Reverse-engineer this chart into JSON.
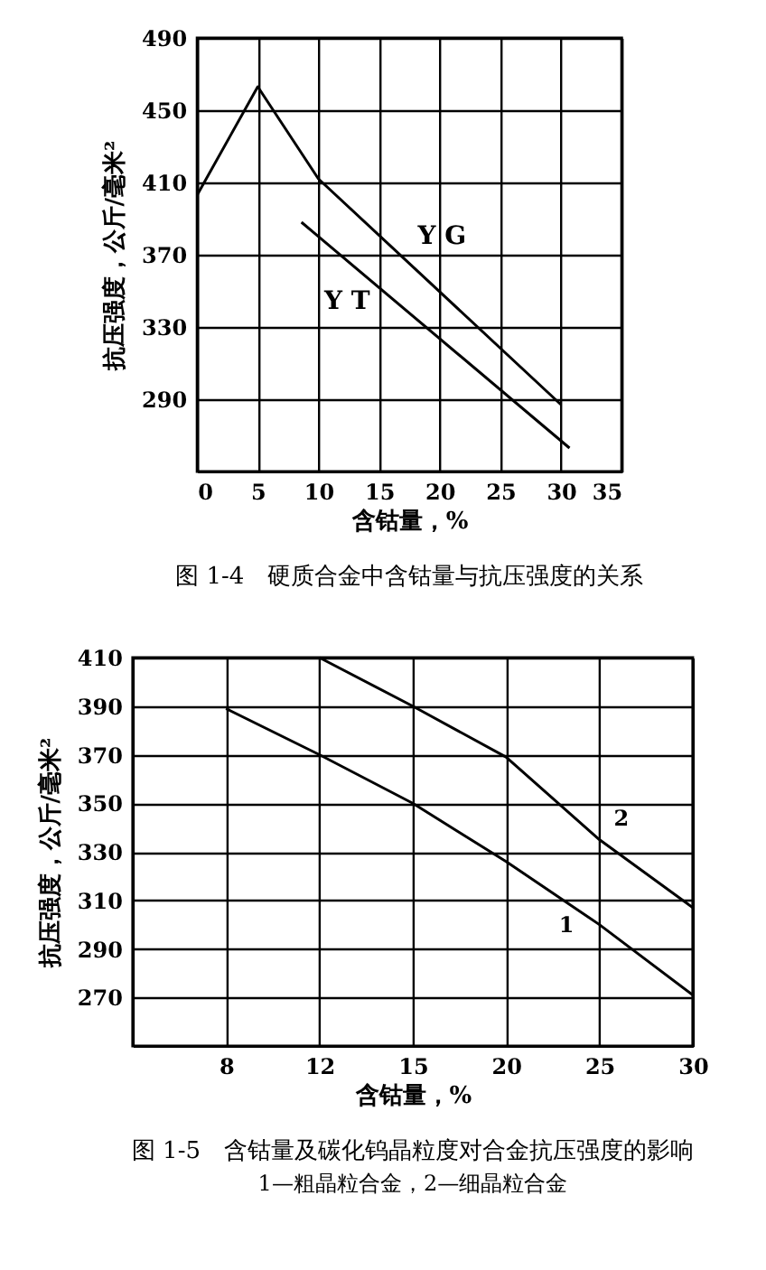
{
  "chart_data": [
    {
      "type": "line",
      "title": "图 1-4　硬质合金中含钴量与抗压强度的关系",
      "xlabel": "含钴量，%",
      "ylabel": "抗压强度，公斤/毫米²",
      "series": [
        {
          "name": "Y G",
          "color": "#000000",
          "x": [
            0,
            5,
            10,
            30
          ],
          "values": [
            403,
            463,
            412,
            287
          ]
        },
        {
          "name": "Y T",
          "color": "#000000",
          "x": [
            8.6,
            30.7
          ],
          "values": [
            388,
            263
          ]
        }
      ],
      "xlim": [
        0,
        35
      ],
      "xticks": [
        0,
        5,
        10,
        15,
        20,
        25,
        30,
        35
      ],
      "ylim": [
        250,
        490
      ],
      "yticks": [
        290,
        330,
        370,
        410,
        450,
        490
      ],
      "grid": true
    },
    {
      "type": "line",
      "title": "图 1-5　含钴量及碳化钨晶粒度对合金抗压强度的影响",
      "subtitle": "1—粗晶粒合金，2—细晶粒合金",
      "xlabel": "含钴量，%",
      "ylabel": "抗压强度，公斤/毫米²",
      "categories": [
        null,
        "8",
        "12",
        "15",
        "20",
        "25",
        "30"
      ],
      "series": [
        {
          "name": "2",
          "color": "#000000",
          "values": [
            null,
            null,
            410,
            390,
            369,
            335,
            307
          ]
        },
        {
          "name": "1",
          "color": "#000000",
          "values": [
            null,
            389,
            370,
            350,
            326,
            300,
            271
          ]
        }
      ],
      "ylim": [
        250,
        410
      ],
      "yticks": [
        270,
        290,
        310,
        330,
        350,
        370,
        390,
        410
      ],
      "grid": true
    }
  ]
}
